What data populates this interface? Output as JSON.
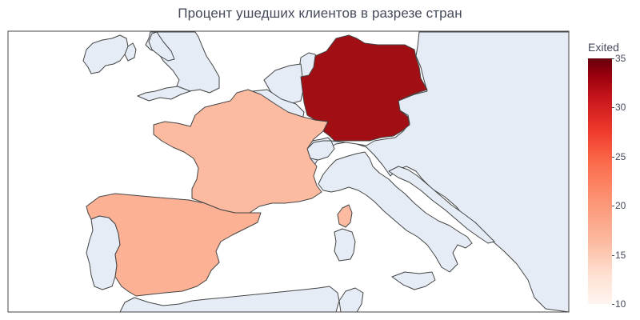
{
  "title": "Процент ушедших клиентов в разрезе стран",
  "colorbar": {
    "title": "Exited",
    "min": 10,
    "max": 35,
    "ticks": [
      {
        "value": 35,
        "label": "35"
      },
      {
        "value": 30,
        "label": "30"
      },
      {
        "value": 25,
        "label": "25"
      },
      {
        "value": 20,
        "label": "20"
      },
      {
        "value": 15,
        "label": "15"
      },
      {
        "value": 10,
        "label": "10"
      }
    ],
    "colorscale": "Reds"
  },
  "chart_data": {
    "type": "choropleth",
    "colorscale": "Reds",
    "zrange": [
      10,
      35
    ],
    "locations": [
      "Germany",
      "France",
      "Spain"
    ],
    "values": [
      32.4,
      16.2,
      16.7
    ],
    "colors": {
      "Germany": "#a10f15",
      "France": "#fcbba1",
      "Spain": "#fcb094"
    },
    "land_color": "#e5ecf6",
    "ocean_color": "#ffffff",
    "border_color": "#444444"
  }
}
